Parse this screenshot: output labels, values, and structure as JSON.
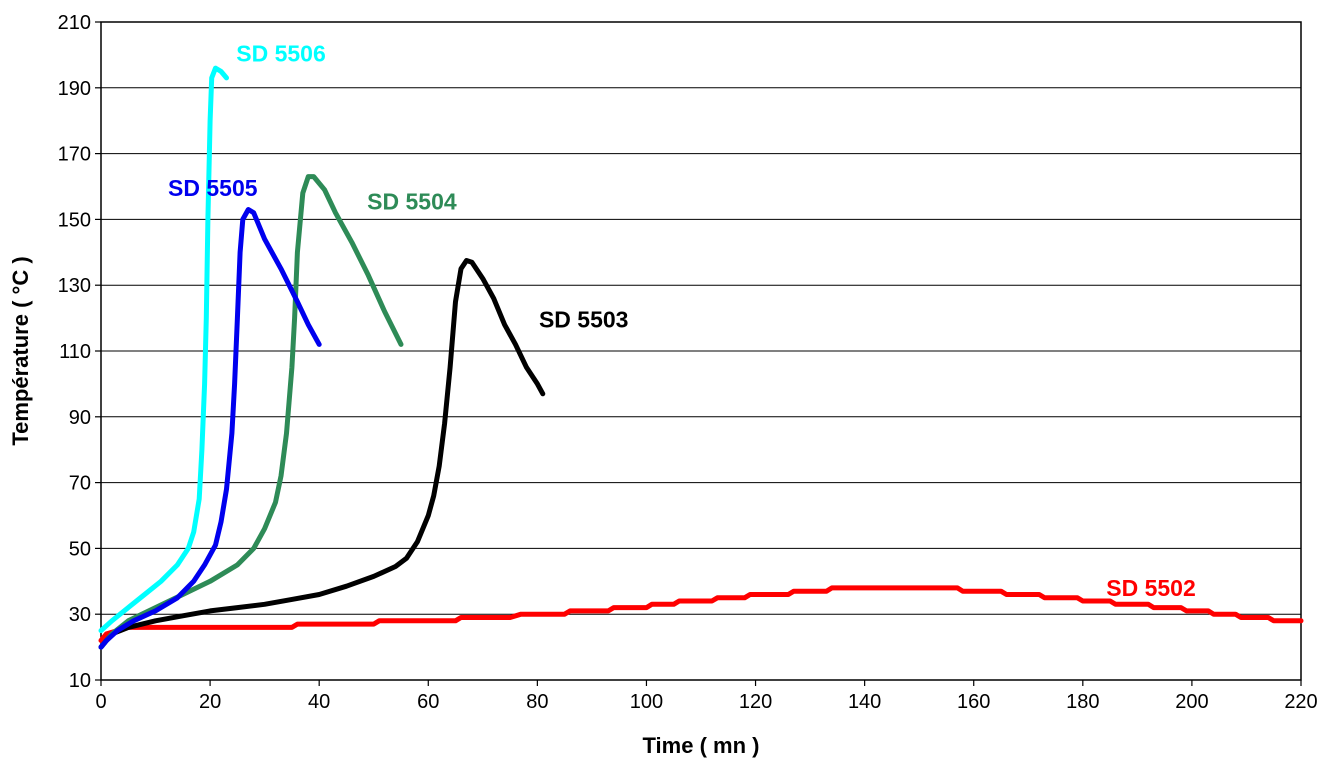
{
  "chart_data": {
    "type": "line",
    "xlabel": "Time ( mn )",
    "ylabel": "Température ( °C )",
    "xlim": [
      0,
      220
    ],
    "ylim": [
      10,
      210
    ],
    "xticks": [
      0,
      20,
      40,
      60,
      80,
      100,
      120,
      140,
      160,
      180,
      200,
      220
    ],
    "yticks": [
      10,
      30,
      50,
      70,
      90,
      110,
      130,
      150,
      170,
      190,
      210
    ],
    "horizontal_grid": true,
    "legend": "inline labels",
    "series": [
      {
        "name": "SD 5502",
        "color": "#ff0000",
        "label_pos": {
          "x": 192.5,
          "y": 38
        },
        "points": [
          [
            0,
            22
          ],
          [
            1,
            24
          ],
          [
            3,
            25
          ],
          [
            5,
            26
          ],
          [
            35,
            26
          ],
          [
            36,
            27
          ],
          [
            50,
            27
          ],
          [
            51,
            28
          ],
          [
            65,
            28
          ],
          [
            66,
            29
          ],
          [
            75,
            29
          ],
          [
            77,
            30
          ],
          [
            85,
            30
          ],
          [
            86,
            31
          ],
          [
            93,
            31
          ],
          [
            94,
            32
          ],
          [
            100,
            32
          ],
          [
            101,
            33
          ],
          [
            105,
            33
          ],
          [
            106,
            34
          ],
          [
            112,
            34
          ],
          [
            113,
            35
          ],
          [
            118,
            35
          ],
          [
            119,
            36
          ],
          [
            126,
            36
          ],
          [
            127,
            37
          ],
          [
            133,
            37
          ],
          [
            134,
            38
          ],
          [
            157,
            38
          ],
          [
            158,
            37
          ],
          [
            165,
            37
          ],
          [
            166,
            36
          ],
          [
            172,
            36
          ],
          [
            173,
            35
          ],
          [
            179,
            35
          ],
          [
            180,
            34
          ],
          [
            185,
            34
          ],
          [
            186,
            33
          ],
          [
            192,
            33
          ],
          [
            193,
            32
          ],
          [
            198,
            32
          ],
          [
            199,
            31
          ],
          [
            203,
            31
          ],
          [
            204,
            30
          ],
          [
            208,
            30
          ],
          [
            209,
            29
          ],
          [
            214,
            29
          ],
          [
            215,
            28
          ],
          [
            220,
            28
          ]
        ]
      },
      {
        "name": "SD 5503",
        "color": "#000000",
        "label_pos": {
          "x": 88.5,
          "y": 119.5
        },
        "points": [
          [
            0,
            20
          ],
          [
            2,
            24
          ],
          [
            5,
            26
          ],
          [
            10,
            28
          ],
          [
            15,
            29.5
          ],
          [
            20,
            31
          ],
          [
            25,
            32
          ],
          [
            30,
            33
          ],
          [
            35,
            34.5
          ],
          [
            40,
            36
          ],
          [
            45,
            38.5
          ],
          [
            50,
            41.5
          ],
          [
            54,
            44.5
          ],
          [
            56,
            47
          ],
          [
            58,
            52
          ],
          [
            60,
            60
          ],
          [
            61,
            66
          ],
          [
            62,
            75
          ],
          [
            63,
            88
          ],
          [
            64,
            105
          ],
          [
            65,
            125
          ],
          [
            66,
            135
          ],
          [
            67,
            137.5
          ],
          [
            68,
            137
          ],
          [
            70,
            132
          ],
          [
            72,
            126
          ],
          [
            74,
            118
          ],
          [
            76,
            112
          ],
          [
            78,
            105
          ],
          [
            80,
            100
          ],
          [
            81,
            97
          ]
        ]
      },
      {
        "name": "SD 5504",
        "color": "#2e8b57",
        "label_pos": {
          "x": 57,
          "y": 155.5
        },
        "points": [
          [
            0,
            20
          ],
          [
            2,
            24
          ],
          [
            5,
            28
          ],
          [
            10,
            32
          ],
          [
            15,
            36
          ],
          [
            20,
            40
          ],
          [
            25,
            45
          ],
          [
            28,
            50
          ],
          [
            30,
            56
          ],
          [
            32,
            64
          ],
          [
            33,
            72
          ],
          [
            34,
            85
          ],
          [
            35,
            105
          ],
          [
            35.5,
            120
          ],
          [
            36,
            140
          ],
          [
            37,
            158
          ],
          [
            38,
            163
          ],
          [
            39,
            163
          ],
          [
            41,
            159
          ],
          [
            43,
            152
          ],
          [
            46,
            143
          ],
          [
            49,
            133
          ],
          [
            52,
            122
          ],
          [
            55,
            112
          ]
        ]
      },
      {
        "name": "SD 5505",
        "color": "#0000ee",
        "label_pos": {
          "x": 20.5,
          "y": 159.5
        },
        "points": [
          [
            0,
            20
          ],
          [
            1,
            22
          ],
          [
            3,
            25
          ],
          [
            6,
            28
          ],
          [
            10,
            31
          ],
          [
            14,
            35
          ],
          [
            17,
            40
          ],
          [
            19,
            45
          ],
          [
            21,
            51
          ],
          [
            22,
            58
          ],
          [
            23,
            68
          ],
          [
            24,
            85
          ],
          [
            24.5,
            100
          ],
          [
            25,
            120
          ],
          [
            25.5,
            140
          ],
          [
            26,
            150
          ],
          [
            27,
            153
          ],
          [
            28,
            152
          ],
          [
            30,
            144
          ],
          [
            33,
            135
          ],
          [
            36,
            125
          ],
          [
            38,
            118
          ],
          [
            40,
            112
          ]
        ]
      },
      {
        "name": "SD 5506",
        "color": "#00ffff",
        "label_pos": {
          "x": 33,
          "y": 200.5
        },
        "points": [
          [
            0,
            25
          ],
          [
            2,
            28
          ],
          [
            5,
            32
          ],
          [
            8,
            36
          ],
          [
            11,
            40
          ],
          [
            14,
            45
          ],
          [
            16,
            50
          ],
          [
            17,
            55
          ],
          [
            18,
            65
          ],
          [
            18.5,
            80
          ],
          [
            19,
            100
          ],
          [
            19.3,
            120
          ],
          [
            19.6,
            150
          ],
          [
            20,
            180
          ],
          [
            20.3,
            193
          ],
          [
            21,
            196
          ],
          [
            22,
            195
          ],
          [
            23,
            193
          ]
        ]
      }
    ]
  }
}
